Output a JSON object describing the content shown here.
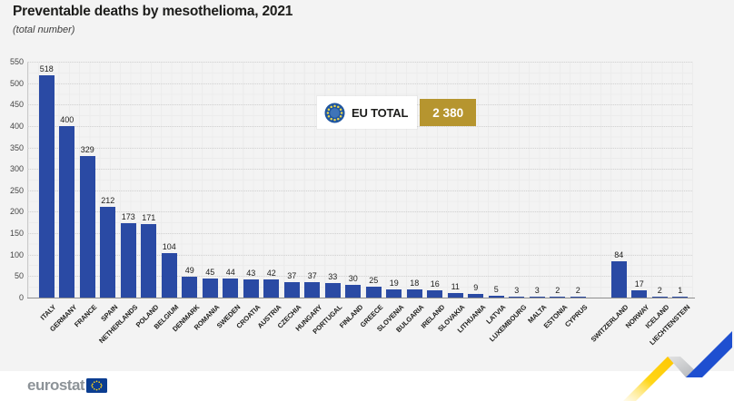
{
  "title": "Preventable deaths by mesothelioma, 2021",
  "subtitle": "(total number)",
  "eu_total": {
    "flag_icon": "eu-flag-circle-of-stars",
    "label": "EU TOTAL",
    "value": "2 380"
  },
  "footer": {
    "logo_text": "eurostat",
    "logo_flag_icon": "eu-flag"
  },
  "colors": {
    "background": "#f3f3f3",
    "bar": "#2a4aa4",
    "eu_total_value_box": "#b6952f",
    "title_text": "#1d1d1b",
    "brand_yellow": "#ffd617",
    "brand_blue": "#0e47cb",
    "footer_background": "#ffffff"
  },
  "chart_data": {
    "type": "bar",
    "title": "Preventable deaths by mesothelioma, 2021",
    "subtitle": "(total number)",
    "xlabel": "",
    "ylabel": "",
    "ylim": [
      0,
      550
    ],
    "ytick_step": 50,
    "yticks": [
      0,
      50,
      100,
      150,
      200,
      250,
      300,
      350,
      400,
      450,
      500,
      550
    ],
    "grid": "dotted mesh, on",
    "legend_position": "none",
    "bar_color": "#2a4aa4",
    "gap_after_index": 26,
    "categories": [
      "ITALY",
      "GERMANY",
      "FRANCE",
      "SPAIN",
      "NETHERLANDS",
      "POLAND",
      "BELGIUM",
      "DENMARK",
      "ROMANIA",
      "SWEDEN",
      "CROATIA",
      "AUSTRIA",
      "CZECHIA",
      "HUNGARY",
      "PORTUGAL",
      "FINLAND",
      "GREECE",
      "SLOVENIA",
      "BULGARIA",
      "IRELAND",
      "SLOVAKIA",
      "LITHUANIA",
      "LATVIA",
      "LUXEMBOURG",
      "MALTA",
      "ESTONIA",
      "CYPRUS",
      "SWITZERLAND",
      "NORWAY",
      "ICELAND",
      "LIECHTENSTEIN"
    ],
    "values": [
      518,
      400,
      329,
      212,
      173,
      171,
      104,
      49,
      45,
      44,
      43,
      42,
      37,
      37,
      33,
      30,
      25,
      19,
      18,
      16,
      11,
      9,
      5,
      3,
      3,
      2,
      2,
      84,
      17,
      2,
      1
    ],
    "eu_total": 2380
  }
}
